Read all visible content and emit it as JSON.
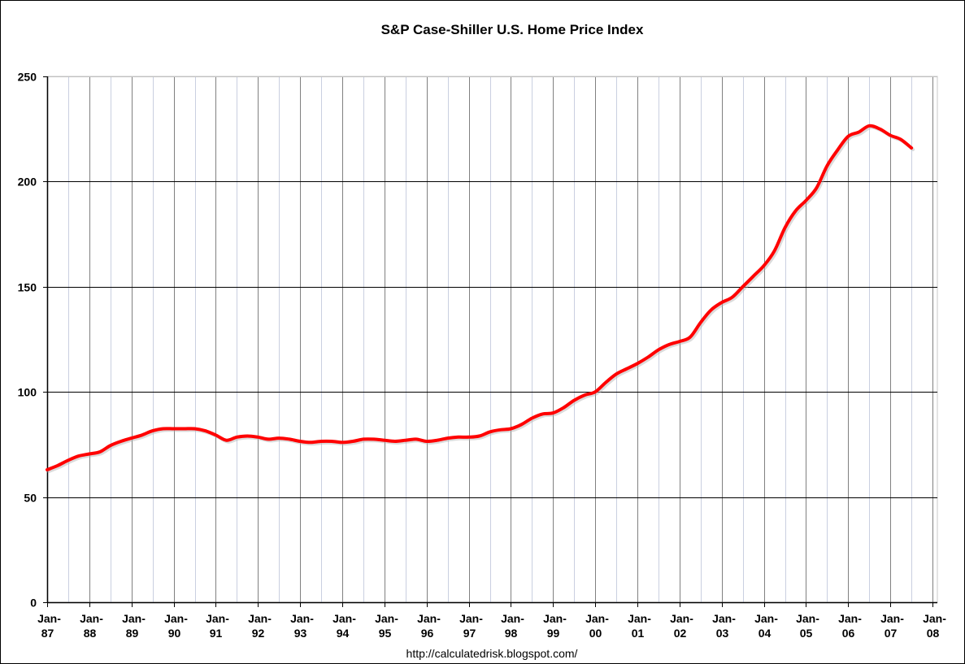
{
  "chart_data": {
    "type": "line",
    "title": "S&P Case-Shiller U.S. Home Price Index",
    "xlabel": "",
    "ylabel": "",
    "source_note": "http://calculatedrisk.blogspot.com/",
    "ylim": [
      0,
      250
    ],
    "xlim": [
      1987.0,
      2008.0
    ],
    "y_ticks": [
      0,
      50,
      100,
      150,
      200,
      250
    ],
    "x_tick_labels": [
      [
        "Jan-",
        "87"
      ],
      [
        "Jan-",
        "88"
      ],
      [
        "Jan-",
        "89"
      ],
      [
        "Jan-",
        "90"
      ],
      [
        "Jan-",
        "91"
      ],
      [
        "Jan-",
        "92"
      ],
      [
        "Jan-",
        "93"
      ],
      [
        "Jan-",
        "94"
      ],
      [
        "Jan-",
        "95"
      ],
      [
        "Jan-",
        "96"
      ],
      [
        "Jan-",
        "97"
      ],
      [
        "Jan-",
        "98"
      ],
      [
        "Jan-",
        "99"
      ],
      [
        "Jan-",
        "00"
      ],
      [
        "Jan-",
        "01"
      ],
      [
        "Jan-",
        "02"
      ],
      [
        "Jan-",
        "03"
      ],
      [
        "Jan-",
        "04"
      ],
      [
        "Jan-",
        "05"
      ],
      [
        "Jan-",
        "06"
      ],
      [
        "Jan-",
        "07"
      ],
      [
        "Jan-",
        "08"
      ]
    ],
    "grid": true,
    "legend": "none",
    "series": [
      {
        "name": "S&P Case-Shiller U.S. Home Price Index",
        "color": "#ff0000",
        "x": [
          1987.0,
          1987.25,
          1987.5,
          1987.75,
          1988.0,
          1988.25,
          1988.5,
          1988.75,
          1989.0,
          1989.25,
          1989.5,
          1989.75,
          1990.0,
          1990.25,
          1990.5,
          1990.75,
          1991.0,
          1991.25,
          1991.5,
          1991.75,
          1992.0,
          1992.25,
          1992.5,
          1992.75,
          1993.0,
          1993.25,
          1993.5,
          1993.75,
          1994.0,
          1994.25,
          1994.5,
          1994.75,
          1995.0,
          1995.25,
          1995.5,
          1995.75,
          1996.0,
          1996.25,
          1996.5,
          1996.75,
          1997.0,
          1997.25,
          1997.5,
          1997.75,
          1998.0,
          1998.25,
          1998.5,
          1998.75,
          1999.0,
          1999.25,
          1999.5,
          1999.75,
          2000.0,
          2000.25,
          2000.5,
          2000.75,
          2001.0,
          2001.25,
          2001.5,
          2001.75,
          2002.0,
          2002.25,
          2002.5,
          2002.75,
          2003.0,
          2003.25,
          2003.5,
          2003.75,
          2004.0,
          2004.25,
          2004.5,
          2004.75,
          2005.0,
          2005.25,
          2005.5,
          2005.75,
          2006.0,
          2006.25,
          2006.5,
          2006.75,
          2007.0,
          2007.25,
          2007.5
        ],
        "values": [
          63,
          65,
          67.5,
          69.5,
          70.5,
          71.5,
          74.5,
          76.5,
          78,
          79.5,
          81.5,
          82.5,
          82.5,
          82.5,
          82.5,
          81.5,
          79.5,
          77,
          78.5,
          79,
          78.5,
          77.5,
          78,
          77.5,
          76.5,
          76,
          76.5,
          76.5,
          76,
          76.5,
          77.5,
          77.5,
          77,
          76.5,
          77,
          77.5,
          76.5,
          77,
          78,
          78.5,
          78.5,
          79,
          81,
          82,
          82.5,
          84.5,
          87.5,
          89.5,
          90,
          92.5,
          96,
          98.5,
          100,
          104.5,
          108.5,
          111,
          113.5,
          116.5,
          120,
          122.5,
          124,
          126,
          133,
          139,
          142.5,
          145,
          150,
          155,
          160,
          167,
          178,
          186,
          191,
          197,
          207.5,
          215,
          221.5,
          223.5,
          226.5,
          225,
          222,
          220,
          216
        ]
      }
    ]
  }
}
